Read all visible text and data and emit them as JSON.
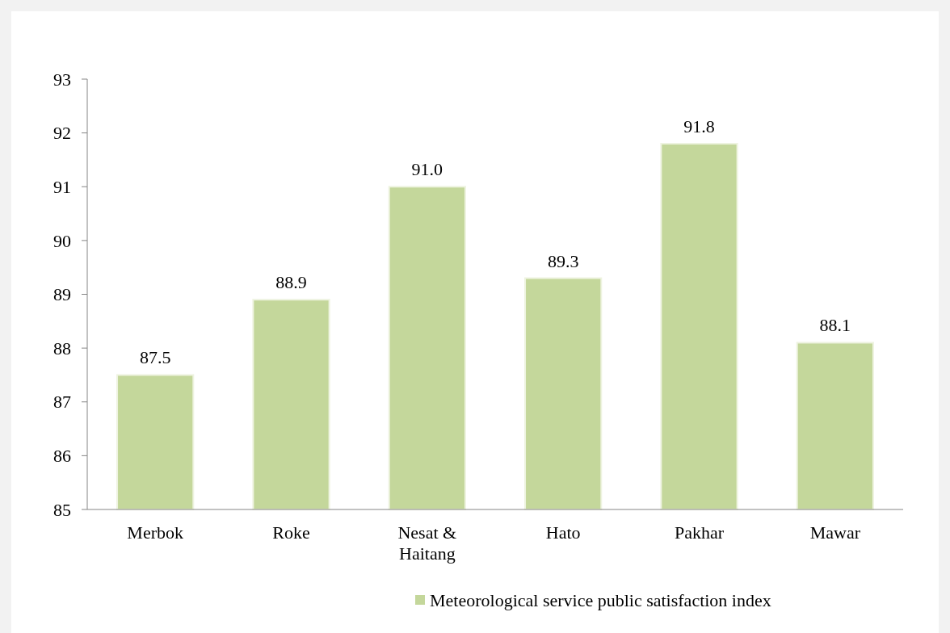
{
  "chart_data": {
    "type": "bar",
    "categories": [
      "Merbok",
      "Roke",
      "Nesat & Haitang",
      "Hato",
      "Pakhar",
      "Mawar"
    ],
    "series": [
      {
        "name": "Meteorological service public satisfaction index",
        "color": "#c4d79b",
        "values": [
          87.5,
          88.9,
          91.0,
          89.3,
          91.8,
          88.1
        ],
        "value_labels": [
          "87.5",
          "88.9",
          "91.0",
          "89.3",
          "91.8",
          "88.1"
        ]
      }
    ],
    "ylim": [
      85,
      93
    ],
    "yticks": [
      85,
      86,
      87,
      88,
      89,
      90,
      91,
      92,
      93
    ],
    "legend": "bottom",
    "grid": false
  }
}
